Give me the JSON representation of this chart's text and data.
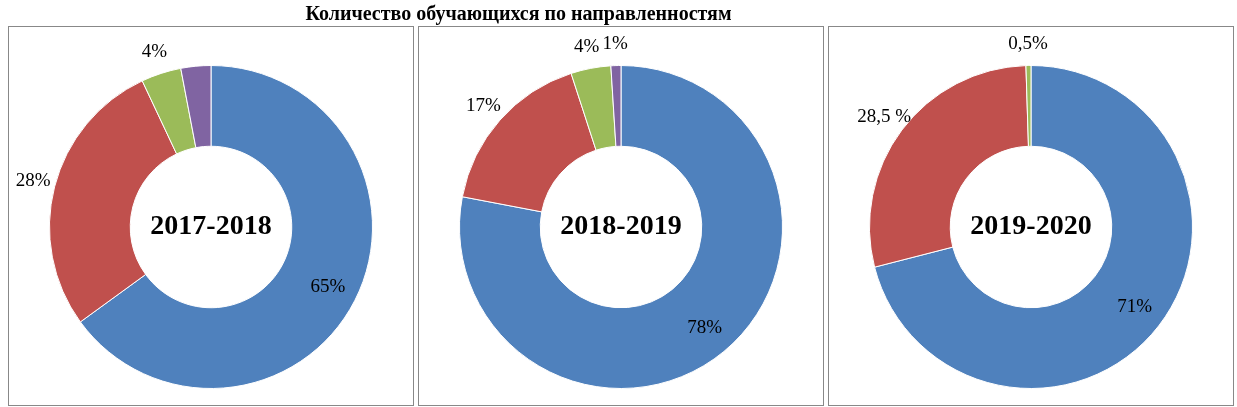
{
  "chart_data": [
    {
      "type": "donut",
      "title": "Количество обучающихся по направленностям",
      "annotations": [
        "2017-2018"
      ],
      "categories": [
        null,
        null,
        null,
        null
      ],
      "values": [
        65,
        28,
        4,
        3
      ],
      "value_labels": [
        "65%",
        "28%",
        "4%",
        null
      ],
      "colors": [
        "#4f81bd",
        "#c0504d",
        "#9bbb59",
        "#8064a2"
      ],
      "legend": false
    },
    {
      "type": "donut",
      "annotations": [
        "2018-2019"
      ],
      "categories": [
        null,
        null,
        null,
        null
      ],
      "values": [
        78,
        17,
        4,
        1
      ],
      "value_labels": [
        "78%",
        "17%",
        "4%",
        "1%"
      ],
      "colors": [
        "#4f81bd",
        "#c0504d",
        "#9bbb59",
        "#8064a2"
      ],
      "legend": false
    },
    {
      "type": "donut",
      "annotations": [
        "2019-2020"
      ],
      "categories": [
        null,
        null,
        null
      ],
      "values": [
        71,
        28.5,
        0.5
      ],
      "value_labels": [
        "71%",
        "28,5 %",
        "0,5%"
      ],
      "colors": [
        "#4f81bd",
        "#c0504d",
        "#9bbb59"
      ],
      "legend": false
    }
  ]
}
